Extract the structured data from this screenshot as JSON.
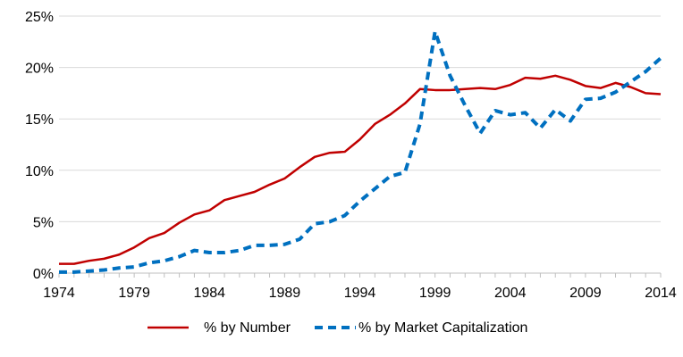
{
  "chart_data": {
    "type": "line",
    "title": "",
    "xlabel": "",
    "ylabel": "",
    "xlim": [
      1974,
      2014
    ],
    "ylim": [
      0,
      25
    ],
    "x_ticks": [
      1974,
      1979,
      1984,
      1989,
      1994,
      1999,
      2004,
      2009,
      2014
    ],
    "x_tick_labels": [
      "1974",
      "1979",
      "1984",
      "1989",
      "1994",
      "1999",
      "2004",
      "2009",
      "2014"
    ],
    "y_ticks": [
      0,
      5,
      10,
      15,
      20,
      25
    ],
    "y_tick_labels": [
      "0%",
      "5%",
      "10%",
      "15%",
      "20%",
      "25%"
    ],
    "grid": "horizontal",
    "legend_position": "bottom",
    "x": [
      1974,
      1975,
      1976,
      1977,
      1978,
      1979,
      1980,
      1981,
      1982,
      1983,
      1984,
      1985,
      1986,
      1987,
      1988,
      1989,
      1990,
      1991,
      1992,
      1993,
      1994,
      1995,
      1996,
      1997,
      1998,
      1999,
      2000,
      2001,
      2002,
      2003,
      2004,
      2005,
      2006,
      2007,
      2008,
      2009,
      2010,
      2011,
      2012,
      2013,
      2014
    ],
    "series": [
      {
        "name": "% by Number",
        "color": "#c00000",
        "style": "solid",
        "values": [
          0.9,
          0.9,
          1.2,
          1.4,
          1.8,
          2.5,
          3.4,
          3.9,
          4.9,
          5.7,
          6.1,
          7.1,
          7.5,
          7.9,
          8.6,
          9.2,
          10.3,
          11.3,
          11.7,
          11.8,
          13.0,
          14.5,
          15.4,
          16.5,
          17.9,
          17.8,
          17.8,
          17.9,
          18.0,
          17.9,
          18.3,
          19.0,
          18.9,
          19.2,
          18.8,
          18.2,
          18.0,
          18.5,
          18.1,
          17.5,
          17.4
        ]
      },
      {
        "name": "% by Market Capitalization",
        "color": "#0070c0",
        "style": "dashed",
        "values": [
          0.1,
          0.1,
          0.2,
          0.3,
          0.5,
          0.6,
          1.0,
          1.2,
          1.6,
          2.2,
          2.0,
          2.0,
          2.2,
          2.7,
          2.7,
          2.8,
          3.3,
          4.8,
          5.0,
          5.6,
          7.0,
          8.2,
          9.4,
          9.8,
          14.5,
          23.5,
          19.2,
          16.3,
          13.6,
          15.8,
          15.4,
          15.6,
          14.1,
          15.9,
          14.8,
          16.9,
          17.0,
          17.6,
          18.6,
          19.6,
          20.9
        ]
      }
    ]
  }
}
